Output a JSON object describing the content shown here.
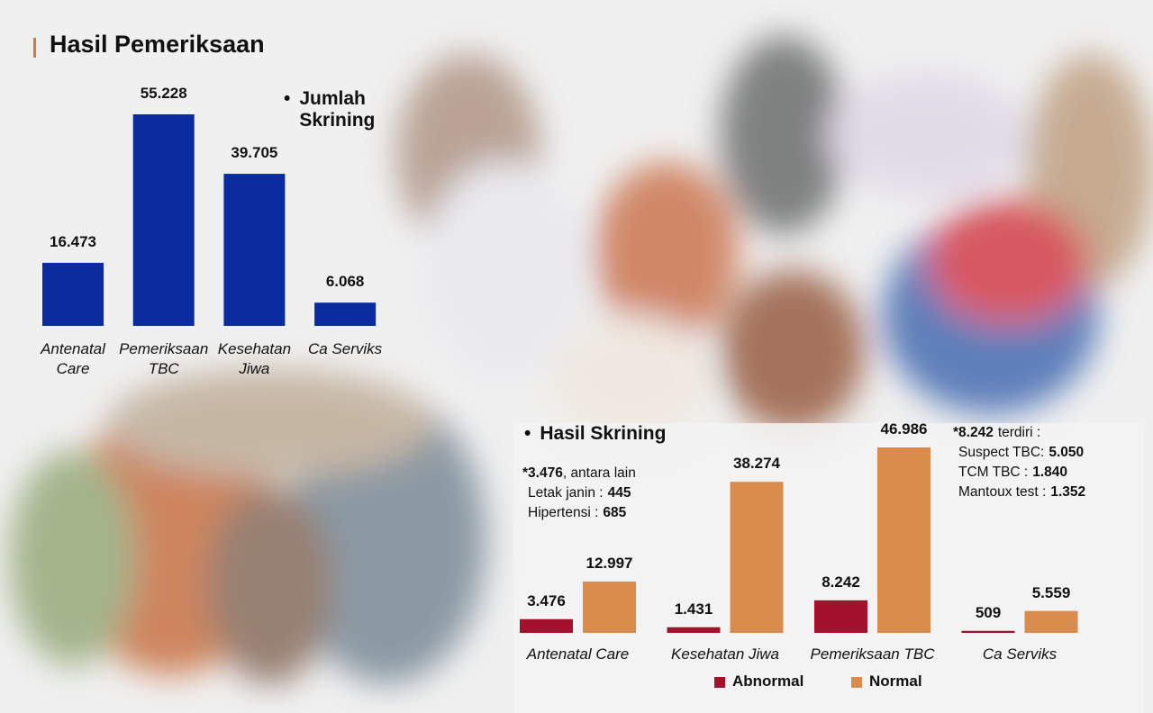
{
  "title": "Hasil Pemeriksaan",
  "chart_data": [
    {
      "type": "bar",
      "title": "Jumlah Skrining",
      "categories": [
        "Antenatal Care",
        "Pemeriksaan TBC",
        "Kesehatan Jiwa",
        "Ca Serviks"
      ],
      "values": [
        16473,
        55228,
        39705,
        6068
      ],
      "value_labels": [
        "16.473",
        "55.228",
        "39.705",
        "6.068"
      ],
      "color": "#0b2c9e"
    },
    {
      "type": "grouped-bar",
      "title": "Hasil Skrining",
      "categories": [
        "Antenatal Care",
        "Kesehatan Jiwa",
        "Pemeriksaan TBC",
        "Ca Serviks"
      ],
      "series": [
        {
          "name": "Abnormal",
          "color": "#a3112c",
          "values": [
            3476,
            1431,
            8242,
            509
          ],
          "value_labels": [
            "3.476",
            "1.431",
            "8.242",
            "509"
          ]
        },
        {
          "name": "Normal",
          "color": "#d98b4b",
          "values": [
            12997,
            38274,
            46986,
            5559
          ],
          "value_labels": [
            "12.997",
            "38.274",
            "46.986",
            "5.559"
          ]
        }
      ],
      "annotations": [
        {
          "lead": "*3.476",
          "text": ", antara lain",
          "items": [
            {
              "label": "Letak janin :",
              "value": "445"
            },
            {
              "label": "Hipertensi :",
              "value": "685"
            }
          ]
        },
        {
          "lead": "*8.242",
          "text": "terdiri :",
          "items": [
            {
              "label": "Suspect TBC:",
              "value": "5.050"
            },
            {
              "label": "TCM TBC :",
              "value": "1.840"
            },
            {
              "label": "Mantoux test :",
              "value": "1.352"
            }
          ]
        }
      ]
    }
  ]
}
